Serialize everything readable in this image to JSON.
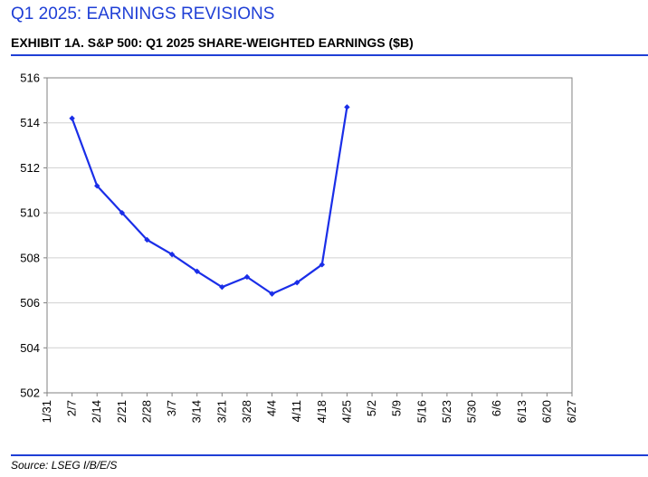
{
  "header": {
    "title": "Q1 2025: EARNINGS REVISIONS",
    "exhibit": "EXHIBIT 1A.  S&P 500: Q1 2025 SHARE-WEIGHTED EARNINGS ($B)"
  },
  "footer": {
    "source": "Source: LSEG I/B/E/S"
  },
  "colors": {
    "accent": "#1f3fd6",
    "series": "#1a2ee8",
    "grid": "#d0d0d0",
    "axis": "#808080"
  },
  "chart_data": {
    "type": "line",
    "title": "",
    "xlabel": "",
    "ylabel": "",
    "ylim": [
      502,
      516
    ],
    "yticks": [
      502,
      504,
      506,
      508,
      510,
      512,
      514,
      516
    ],
    "grid": true,
    "legend": "none",
    "categories": [
      "1/31",
      "2/7",
      "2/14",
      "2/21",
      "2/28",
      "3/7",
      "3/14",
      "3/21",
      "3/28",
      "4/4",
      "4/11",
      "4/18",
      "4/25",
      "5/2",
      "5/9",
      "5/16",
      "5/23",
      "5/30",
      "6/6",
      "6/13",
      "6/20",
      "6/27"
    ],
    "series": [
      {
        "values": [
          null,
          514.2,
          511.2,
          510.0,
          508.8,
          508.15,
          507.4,
          506.7,
          507.15,
          506.4,
          506.9,
          507.7,
          514.7,
          null,
          null,
          null,
          null,
          null,
          null,
          null,
          null,
          null
        ]
      }
    ]
  }
}
